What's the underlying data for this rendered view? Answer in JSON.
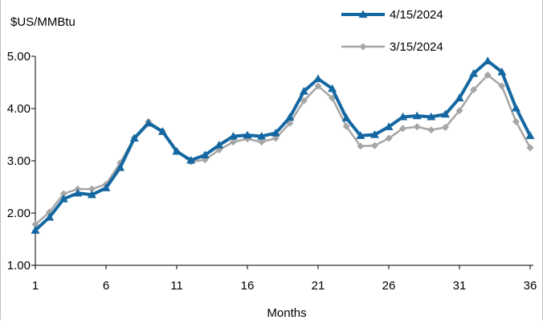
{
  "chart_data": {
    "type": "line",
    "title": "",
    "ylabel": "$US/MMBtu",
    "xlabel": "Months",
    "ylim": [
      1.0,
      5.0
    ],
    "yticks": [
      "1.00",
      "2.00",
      "3.00",
      "4.00",
      "5.00"
    ],
    "xlim": [
      1,
      36
    ],
    "xticks": [
      "1",
      "6",
      "11",
      "16",
      "21",
      "26",
      "31",
      "36"
    ],
    "legend_position": "top-right",
    "grid": false,
    "x": [
      1,
      2,
      3,
      4,
      5,
      6,
      7,
      8,
      9,
      10,
      11,
      12,
      13,
      14,
      15,
      16,
      17,
      18,
      19,
      20,
      21,
      22,
      23,
      24,
      25,
      26,
      27,
      28,
      29,
      30,
      31,
      32,
      33,
      34,
      35,
      36
    ],
    "series": [
      {
        "name": "4/15/2024",
        "color": "#1467a0",
        "marker": "triangle",
        "values": [
          1.67,
          1.92,
          2.27,
          2.38,
          2.35,
          2.48,
          2.87,
          3.43,
          3.72,
          3.56,
          3.18,
          3.01,
          3.11,
          3.3,
          3.47,
          3.49,
          3.47,
          3.53,
          3.83,
          4.33,
          4.57,
          4.38,
          3.82,
          3.48,
          3.5,
          3.65,
          3.84,
          3.86,
          3.84,
          3.89,
          4.2,
          4.67,
          4.91,
          4.7,
          4.01,
          3.48
        ]
      },
      {
        "name": "3/15/2024",
        "color": "#a6a6a6",
        "marker": "diamond",
        "values": [
          1.78,
          2.02,
          2.37,
          2.46,
          2.46,
          2.55,
          2.96,
          3.44,
          3.75,
          3.57,
          3.18,
          2.98,
          3.02,
          3.21,
          3.36,
          3.42,
          3.36,
          3.43,
          3.72,
          4.15,
          4.43,
          4.2,
          3.66,
          3.28,
          3.29,
          3.43,
          3.62,
          3.65,
          3.59,
          3.64,
          3.96,
          4.36,
          4.64,
          4.43,
          3.75,
          3.25
        ]
      }
    ]
  }
}
